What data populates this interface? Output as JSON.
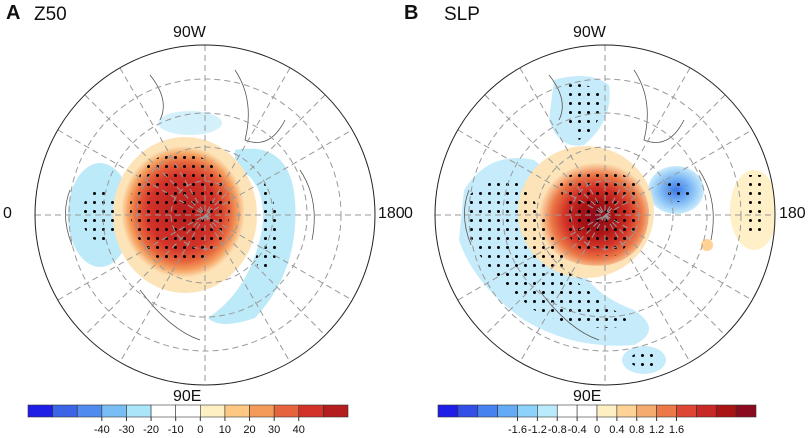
{
  "panels": [
    {
      "letter": "A",
      "title": "Z50",
      "labels": {
        "top": "90W",
        "bottom": "90E",
        "left": "0",
        "right": "180"
      },
      "colorbar": {
        "ticks": [
          "-40",
          "-30",
          "-20",
          "-10",
          "0",
          "10",
          "20",
          "30",
          "40"
        ],
        "colors": [
          "#1e1ee6",
          "#3c64e6",
          "#508cf0",
          "#78bef5",
          "#aae6fa",
          "#ffffff",
          "#ffffff",
          "#fff0c3",
          "#ffc882",
          "#f59b5a",
          "#e6643c",
          "#d23228",
          "#b41e1e"
        ]
      },
      "features": [
        {
          "name": "positive-core-anomaly",
          "sign": "positive",
          "intensity": 1.0
        },
        {
          "name": "negative-left-anomaly",
          "sign": "negative",
          "intensity": 0.4
        },
        {
          "name": "negative-right-arc-anomaly",
          "sign": "negative",
          "intensity": 0.4
        }
      ]
    },
    {
      "letter": "B",
      "title": "SLP",
      "labels": {
        "top": "90W",
        "bottom": "90E",
        "left": "0",
        "right": "180"
      },
      "colorbar": {
        "ticks": [
          "-1.6",
          "-1.2",
          "-0.8",
          "-0.4",
          "0",
          "0.4",
          "0.8",
          "1.2",
          "1.6"
        ],
        "colors": [
          "#1e1ee6",
          "#3250e6",
          "#4682f0",
          "#64aaf5",
          "#8cd2fa",
          "#b9ebfc",
          "#ffffff",
          "#ffffff",
          "#fff0c3",
          "#ffd296",
          "#f5aa6e",
          "#eb7846",
          "#dc4632",
          "#c82828",
          "#aa1414",
          "#8c0a1e"
        ]
      },
      "features": [
        {
          "name": "positive-core-anomaly",
          "sign": "positive",
          "intensity": 1.0
        },
        {
          "name": "negative-left-band-anomaly",
          "sign": "negative",
          "intensity": 0.35
        },
        {
          "name": "negative-upper-anomaly",
          "sign": "negative",
          "intensity": 0.3
        },
        {
          "name": "negative-right-blue-anomaly",
          "sign": "negative",
          "intensity": 0.8
        },
        {
          "name": "positive-far-right-anomaly",
          "sign": "positive",
          "intensity": 0.2
        }
      ]
    }
  ]
}
